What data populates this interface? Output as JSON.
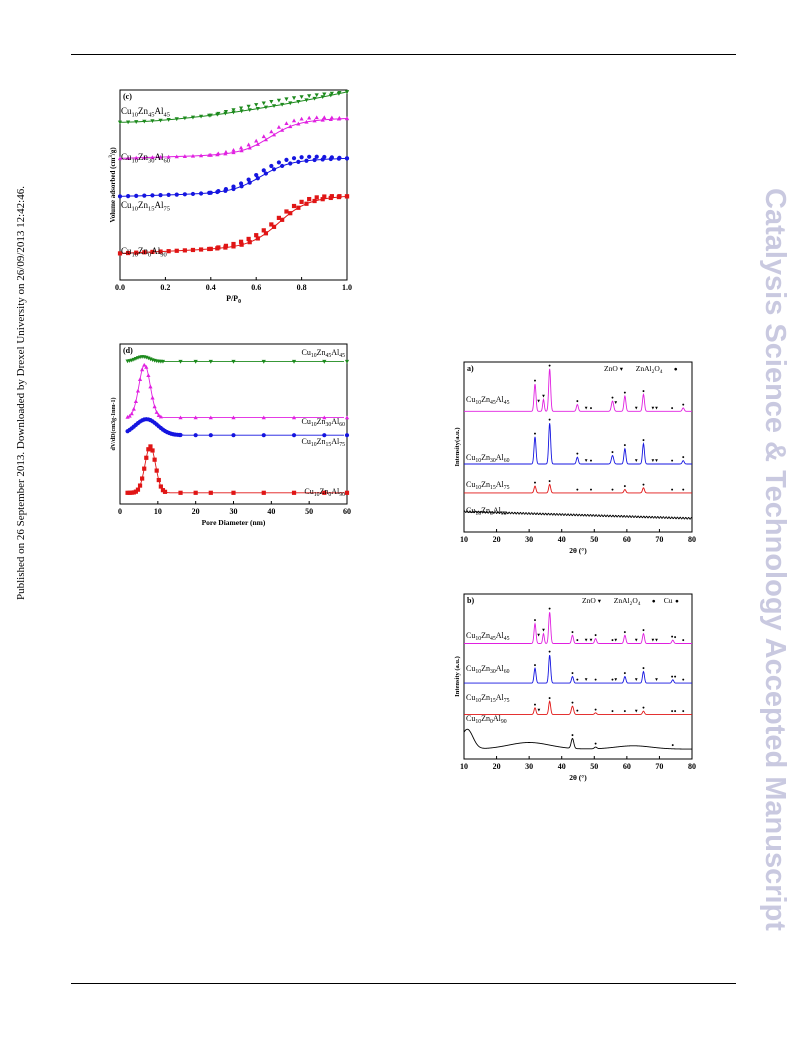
{
  "header": {},
  "sidebar_left": "Published on 26 September 2013. Downloaded by Drexel University on 26/09/2013 12:42:46.",
  "watermark": "Catalysis Science & Technology Accepted Manuscript",
  "panels": [
    {
      "tag": "(c)",
      "chart_data": {
        "type": "line",
        "title": "",
        "xlabel": "P/P0",
        "ylabel": "Volume adsorbed (cm3/g)",
        "xlim": [
          0.0,
          1.0
        ],
        "xticks": [
          "0.0",
          "0.2",
          "0.4",
          "0.6",
          "0.8",
          "1.0"
        ],
        "y_ticks_shown": false,
        "series": [
          {
            "name": "Cu10Zn45Al45",
            "label": [
              "Cu",
              "10",
              "Zn",
              "45",
              "Al",
              "45"
            ],
            "color": "#1d8a1d",
            "marker": "triangle-down",
            "kind": "linear",
            "start": 0.17,
            "end": 0.01
          },
          {
            "name": "Cu10Zn30Al60",
            "label": [
              "Cu",
              "10",
              "Zn",
              "30",
              "Al",
              "60"
            ],
            "color": "#e020e0",
            "marker": "triangle-up",
            "kind": "sigmoid",
            "start": 0.36,
            "end": 0.15,
            "mid": 0.66
          },
          {
            "name": "Cu10Zn15Al75",
            "label": [
              "Cu",
              "10",
              "Zn",
              "15",
              "Al",
              "75"
            ],
            "color": "#1515e0",
            "marker": "circle",
            "kind": "sigmoid",
            "start": 0.56,
            "end": 0.36,
            "mid": 0.62
          },
          {
            "name": "Cu10Zn0Al90",
            "label": [
              "Cu",
              "10",
              "Zn",
              "0",
              "Al",
              "90"
            ],
            "color": "#e01515",
            "marker": "square",
            "kind": "sigmoid",
            "start": 0.86,
            "end": 0.56,
            "mid": 0.7
          }
        ]
      }
    },
    {
      "tag": "(d)",
      "chart_data": {
        "type": "line",
        "title": "",
        "xlabel": "Pore Diameter (nm)",
        "ylabel": "dV/dD(cm3g-1nm-1)",
        "xlim": [
          0,
          60
        ],
        "xticks": [
          "0",
          "10",
          "20",
          "30",
          "40",
          "50",
          "60"
        ],
        "y_ticks_shown": false,
        "series": [
          {
            "name": "Cu10Zn45Al45",
            "label": [
              "Cu",
              "10",
              "Zn",
              "45",
              "Al",
              "45"
            ],
            "color": "#1d8a1d",
            "marker": "triangle-down",
            "baseline": 0.11,
            "peak_x": 6,
            "peak_h": 0.03,
            "width": 1.8
          },
          {
            "name": "Cu10Zn30Al60",
            "label": [
              "Cu",
              "10",
              "Zn",
              "30",
              "Al",
              "60"
            ],
            "color": "#e020e0",
            "marker": "triangle-up",
            "baseline": 0.46,
            "peak_x": 6.5,
            "peak_h": 0.33,
            "width": 1.5
          },
          {
            "name": "Cu10Zn15Al75",
            "label": [
              "Cu",
              "10",
              "Zn",
              "15",
              "Al",
              "75"
            ],
            "color": "#1515e0",
            "marker": "circle",
            "baseline": 0.57,
            "peak_x": 7,
            "peak_h": 0.1,
            "width": 3.0
          },
          {
            "name": "Cu10Zn0Al90",
            "label": [
              "Cu",
              "10",
              "Zn",
              "0",
              "Al",
              "90"
            ],
            "color": "#e01515",
            "marker": "square",
            "baseline": 0.93,
            "peak_x": 8,
            "peak_h": 0.29,
            "width": 1.4
          }
        ]
      }
    },
    {
      "tag": "a)",
      "chart_data": {
        "type": "line",
        "title": "",
        "xlabel": "2θ (°)",
        "ylabel": "Intensity(a.u.)",
        "xlim": [
          10,
          80
        ],
        "xticks": [
          "10",
          "20",
          "30",
          "40",
          "50",
          "60",
          "70",
          "80"
        ],
        "y_ticks_shown": false,
        "legend": [
          {
            "text": "ZnO",
            "symbol": "▾"
          },
          {
            "text": "ZnAl2O4",
            "symbol": "●",
            "parts": [
              "ZnAl",
              "2",
              "O",
              "4"
            ]
          }
        ],
        "series": [
          {
            "name": "Cu10Zn45Al45",
            "label": [
              "Cu",
              "10",
              "Zn",
              "45",
              "Al",
              "45"
            ],
            "color": "#e020e0",
            "baseline": 0.29,
            "scale": 1.0,
            "noise": 0.0,
            "peaks": [
              [
                31.8,
                0.16,
                0.6
              ],
              [
                34.4,
                0.07,
                0.5
              ],
              [
                36.3,
                0.25,
                0.6
              ],
              [
                44.8,
                0.04,
                0.6
              ],
              [
                55.6,
                0.06,
                0.7
              ],
              [
                59.4,
                0.09,
                0.6
              ],
              [
                65.1,
                0.1,
                0.6
              ],
              [
                77.3,
                0.02,
                0.6
              ]
            ],
            "marks": [
              [
                31.8,
                "●"
              ],
              [
                32.9,
                "▾"
              ],
              [
                34.4,
                "▾"
              ],
              [
                36.3,
                "●"
              ],
              [
                44.8,
                "●"
              ],
              [
                47.5,
                "▾"
              ],
              [
                49.0,
                "●"
              ],
              [
                55.6,
                "●"
              ],
              [
                56.6,
                "▾"
              ],
              [
                59.4,
                "●"
              ],
              [
                62.9,
                "▾"
              ],
              [
                65.1,
                "●"
              ],
              [
                68.0,
                "▾"
              ],
              [
                69.1,
                "▾"
              ],
              [
                73.9,
                "●"
              ],
              [
                77.3,
                "●"
              ]
            ]
          },
          {
            "name": "Cu10Zn30Al60",
            "label": [
              "Cu",
              "10",
              "Zn",
              "30",
              "Al",
              "60"
            ],
            "color": "#1515e0",
            "baseline": 0.6,
            "scale": 1.0,
            "noise": 0.0,
            "peaks": [
              [
                31.8,
                0.16,
                0.6
              ],
              [
                36.3,
                0.24,
                0.6
              ],
              [
                44.8,
                0.04,
                0.6
              ],
              [
                55.6,
                0.05,
                0.7
              ],
              [
                59.4,
                0.09,
                0.6
              ],
              [
                65.1,
                0.12,
                0.6
              ],
              [
                77.3,
                0.02,
                0.6
              ]
            ],
            "marks": [
              [
                31.8,
                "●"
              ],
              [
                36.3,
                "●"
              ],
              [
                44.8,
                "●"
              ],
              [
                47.5,
                "▾"
              ],
              [
                49.0,
                "●"
              ],
              [
                55.6,
                "●"
              ],
              [
                59.4,
                "●"
              ],
              [
                62.9,
                "▾"
              ],
              [
                65.1,
                "●"
              ],
              [
                68.0,
                "▾"
              ],
              [
                69.1,
                "▾"
              ],
              [
                73.9,
                "●"
              ],
              [
                77.3,
                "●"
              ]
            ]
          },
          {
            "name": "Cu10Zn15Al75",
            "label": [
              "Cu",
              "10",
              "Zn",
              "15",
              "Al",
              "75"
            ],
            "color": "#e01515",
            "baseline": 0.77,
            "scale": 1.0,
            "noise": 0.0,
            "peaks": [
              [
                31.8,
                0.04,
                0.6
              ],
              [
                36.3,
                0.05,
                0.6
              ],
              [
                59.4,
                0.02,
                0.6
              ],
              [
                65.1,
                0.03,
                0.6
              ]
            ],
            "marks": [
              [
                31.8,
                "●"
              ],
              [
                36.3,
                "●"
              ],
              [
                44.8,
                "●"
              ],
              [
                49.0,
                "●"
              ],
              [
                55.6,
                "●"
              ],
              [
                59.4,
                "●"
              ],
              [
                65.1,
                "●"
              ],
              [
                73.9,
                "●"
              ],
              [
                77.3,
                "●"
              ]
            ]
          },
          {
            "name": "Cu10Zn0Al90",
            "label": [
              "Cu",
              "10",
              "Zn",
              "0",
              "Al",
              "90"
            ],
            "color": "#000000",
            "baseline": 0.92,
            "scale": 1.0,
            "noise": 0.005,
            "slope": 0.04,
            "peaks": [],
            "marks": []
          }
        ]
      }
    },
    {
      "tag": "b)",
      "chart_data": {
        "type": "line",
        "title": "",
        "xlabel": "2θ (°)",
        "ylabel": "Intensity (a.u.)",
        "xlim": [
          10,
          80
        ],
        "xticks": [
          "10",
          "20",
          "30",
          "40",
          "50",
          "60",
          "70",
          "80"
        ],
        "y_ticks_shown": false,
        "legend": [
          {
            "text": "ZnO",
            "symbol": "▾"
          },
          {
            "text": "ZnAl2O4",
            "symbol": "●",
            "parts": [
              "ZnAl",
              "2",
              "O",
              "4"
            ]
          },
          {
            "text": "Cu",
            "symbol": "●"
          }
        ],
        "series": [
          {
            "name": "Cu10Zn45Al45",
            "label": [
              "Cu",
              "10",
              "Zn",
              "45",
              "Al",
              "45"
            ],
            "color": "#e020e0",
            "baseline": 0.3,
            "scale": 1.0,
            "noise": 0.0,
            "peaks": [
              [
                31.8,
                0.12,
                0.6
              ],
              [
                34.4,
                0.06,
                0.5
              ],
              [
                36.3,
                0.19,
                0.6
              ],
              [
                43.3,
                0.05,
                0.6
              ],
              [
                50.4,
                0.03,
                0.6
              ],
              [
                59.4,
                0.05,
                0.6
              ],
              [
                65.1,
                0.06,
                0.6
              ],
              [
                74.1,
                0.02,
                0.6
              ]
            ],
            "marks": [
              [
                31.8,
                "●"
              ],
              [
                32.9,
                "▾"
              ],
              [
                34.4,
                "▾"
              ],
              [
                36.3,
                "●"
              ],
              [
                43.3,
                "●"
              ],
              [
                44.8,
                "●"
              ],
              [
                47.5,
                "▾"
              ],
              [
                49.0,
                "▾"
              ],
              [
                50.4,
                "●"
              ],
              [
                55.6,
                "●"
              ],
              [
                56.6,
                "▾"
              ],
              [
                59.4,
                "●"
              ],
              [
                62.9,
                "▾"
              ],
              [
                65.1,
                "●"
              ],
              [
                68.0,
                "▾"
              ],
              [
                69.1,
                "▾"
              ],
              [
                73.9,
                "●"
              ],
              [
                74.8,
                "●"
              ],
              [
                77.3,
                "●"
              ]
            ]
          },
          {
            "name": "Cu10Zn30Al60",
            "label": [
              "Cu",
              "10",
              "Zn",
              "30",
              "Al",
              "60"
            ],
            "color": "#1515e0",
            "baseline": 0.54,
            "scale": 1.0,
            "noise": 0.0,
            "peaks": [
              [
                31.8,
                0.09,
                0.6
              ],
              [
                36.3,
                0.17,
                0.6
              ],
              [
                43.3,
                0.04,
                0.6
              ],
              [
                59.4,
                0.04,
                0.6
              ],
              [
                65.1,
                0.07,
                0.6
              ],
              [
                74.1,
                0.02,
                0.6
              ]
            ],
            "marks": [
              [
                31.8,
                "●"
              ],
              [
                36.3,
                "●"
              ],
              [
                43.3,
                "●"
              ],
              [
                44.8,
                "●"
              ],
              [
                47.5,
                "▾"
              ],
              [
                50.4,
                "●"
              ],
              [
                55.6,
                "●"
              ],
              [
                56.6,
                "▾"
              ],
              [
                59.4,
                "●"
              ],
              [
                62.9,
                "▾"
              ],
              [
                65.1,
                "●"
              ],
              [
                69.1,
                "▾"
              ],
              [
                73.9,
                "●"
              ],
              [
                74.8,
                "●"
              ],
              [
                77.3,
                "●"
              ]
            ]
          },
          {
            "name": "Cu10Zn15Al75",
            "label": [
              "Cu",
              "10",
              "Zn",
              "15",
              "Al",
              "75"
            ],
            "color": "#e01515",
            "baseline": 0.73,
            "scale": 1.0,
            "noise": 0.0,
            "peaks": [
              [
                31.8,
                0.04,
                0.6
              ],
              [
                36.3,
                0.08,
                0.6
              ],
              [
                43.3,
                0.05,
                0.7
              ],
              [
                50.4,
                0.01,
                0.6
              ],
              [
                65.1,
                0.02,
                0.6
              ]
            ],
            "marks": [
              [
                31.8,
                "●"
              ],
              [
                33.0,
                "▾"
              ],
              [
                36.3,
                "●"
              ],
              [
                43.3,
                "●"
              ],
              [
                44.8,
                "●"
              ],
              [
                50.4,
                "●"
              ],
              [
                55.6,
                "●"
              ],
              [
                59.4,
                "●"
              ],
              [
                62.9,
                "▾"
              ],
              [
                65.1,
                "●"
              ],
              [
                73.9,
                "●"
              ],
              [
                74.8,
                "●"
              ],
              [
                77.3,
                "●"
              ]
            ]
          },
          {
            "name": "Cu10Zn0Al90",
            "label": [
              "Cu",
              "10",
              "Zn",
              "0",
              "Al",
              "90"
            ],
            "color": "#000000",
            "baseline": 0.94,
            "scale": 1.0,
            "noise": 0.0,
            "amorphous": true,
            "peaks": [
              [
                43.3,
                0.06,
                0.8
              ],
              [
                50.4,
                0.01,
                0.8
              ]
            ],
            "marks": [
              [
                43.3,
                "●"
              ],
              [
                50.4,
                "●"
              ],
              [
                74.1,
                "●"
              ]
            ]
          }
        ]
      }
    }
  ]
}
